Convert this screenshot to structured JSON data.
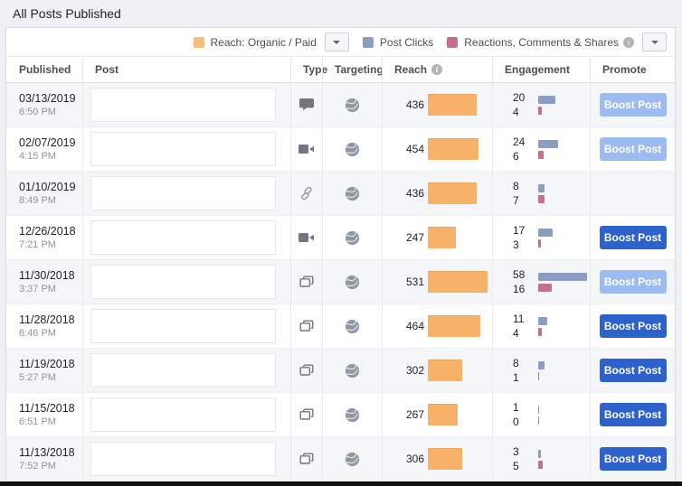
{
  "page": {
    "title": "All Posts Published"
  },
  "legend": {
    "reach": {
      "label": "Reach: Organic / Paid"
    },
    "post_clicks": {
      "label": "Post Clicks"
    },
    "reactions": {
      "label": "Reactions, Comments & Shares"
    }
  },
  "colors": {
    "reach_bar": "#f8b168",
    "reach_swatch": "#f8bd76",
    "post_clicks_bar": "#8b9dc3",
    "reactions_bar": "#c76d8d",
    "boost_active": "#2d62cc",
    "boost_disabled": "#9cbbf0"
  },
  "table": {
    "columns": {
      "published": "Published",
      "post": "Post",
      "type": "Type",
      "targeting": "Targeting",
      "reach": "Reach",
      "engagement": "Engagement",
      "promote": "Promote"
    },
    "promote_label": "Boost Post",
    "rows": [
      {
        "date": "03/13/2019",
        "time": "6:50 PM",
        "type": "status",
        "targeting": "public",
        "reach": 436,
        "post_clicks": 20,
        "reactions": 4,
        "boost": "disabled"
      },
      {
        "date": "02/07/2019",
        "time": "4:15 PM",
        "type": "video",
        "targeting": "public",
        "reach": 454,
        "post_clicks": 24,
        "reactions": 6,
        "boost": "disabled"
      },
      {
        "date": "01/10/2019",
        "time": "8:49 PM",
        "type": "link",
        "targeting": "public",
        "reach": 436,
        "post_clicks": 8,
        "reactions": 7,
        "boost": "none"
      },
      {
        "date": "12/26/2018",
        "time": "7:21 PM",
        "type": "video",
        "targeting": "public",
        "reach": 247,
        "post_clicks": 17,
        "reactions": 3,
        "boost": "active"
      },
      {
        "date": "11/30/2018",
        "time": "3:37 PM",
        "type": "photo",
        "targeting": "public",
        "reach": 531,
        "post_clicks": 58,
        "reactions": 16,
        "boost": "disabled"
      },
      {
        "date": "11/28/2018",
        "time": "8:46 PM",
        "type": "photo",
        "targeting": "public",
        "reach": 464,
        "post_clicks": 11,
        "reactions": 4,
        "boost": "active"
      },
      {
        "date": "11/19/2018",
        "time": "5:27 PM",
        "type": "photo",
        "targeting": "public",
        "reach": 302,
        "post_clicks": 8,
        "reactions": 1,
        "boost": "active"
      },
      {
        "date": "11/15/2018",
        "time": "6:51 PM",
        "type": "photo",
        "targeting": "public",
        "reach": 267,
        "post_clicks": 1,
        "reactions": 0,
        "boost": "active"
      },
      {
        "date": "11/13/2018",
        "time": "7:52 PM",
        "type": "photo",
        "targeting": "public",
        "reach": 306,
        "post_clicks": 3,
        "reactions": 5,
        "boost": "active"
      }
    ]
  }
}
